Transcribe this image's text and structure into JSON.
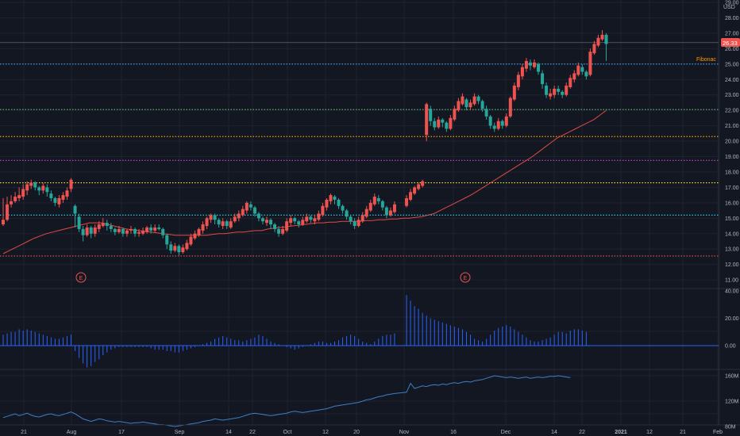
{
  "colors": {
    "background": "#131722",
    "grid": "#1f2330",
    "axis_text": "#b2b5be",
    "up": "#26a69a",
    "down": "#ef5350",
    "ma": "#e04a44",
    "histogram": "#2962ff",
    "line": "#3d7fc4"
  },
  "price_axis": {
    "unit": "USD",
    "ticks": [
      "29.00",
      "28.00",
      "27.00",
      "26.00",
      "25.00",
      "24.00",
      "23.00",
      "22.00",
      "21.00",
      "20.00",
      "19.00",
      "18.00",
      "17.00",
      "16.00",
      "15.00",
      "14.00",
      "13.00",
      "12.00",
      "11.00"
    ],
    "last_price": "26.33"
  },
  "indicator_axis": {
    "ticks": [
      "40.00",
      "20.00",
      "0.00"
    ]
  },
  "volume_axis": {
    "ticks": [
      "160M",
      "120M",
      "80M"
    ]
  },
  "time_axis": {
    "labels": [
      "21",
      "Aug",
      "17",
      "Sep",
      "14",
      "22",
      "Oct",
      "12",
      "20",
      "Nov",
      "16",
      "Dec",
      "14",
      "22",
      "2021",
      "12",
      "21",
      "Feb"
    ]
  },
  "fib_label": "Fibonac",
  "earnings_marker": "E",
  "chart_data": {
    "type": "candlestick",
    "y_range": [
      11,
      29
    ],
    "fib_levels": [
      {
        "price": 25.0,
        "color": "#42a5f5"
      },
      {
        "price": 22.05,
        "color": "#66bb6a"
      },
      {
        "price": 20.3,
        "color": "#ff9800"
      },
      {
        "price": 18.75,
        "color": "#ab47bc"
      },
      {
        "price": 17.3,
        "color": "#ffeb3b"
      },
      {
        "price": 15.2,
        "color": "#26c6da"
      },
      {
        "price": 12.55,
        "color": "#ef5350"
      }
    ],
    "resistance_price": 26.4,
    "candles": [
      [
        14.9,
        14.6,
        16.3,
        14.5
      ],
      [
        15.9,
        14.9,
        16.4,
        14.8
      ],
      [
        16.1,
        15.9,
        16.5,
        15.7
      ],
      [
        16.4,
        16.1,
        16.7,
        16.0
      ],
      [
        16.5,
        16.3,
        17.0,
        16.1
      ],
      [
        16.9,
        16.4,
        17.2,
        16.2
      ],
      [
        17.2,
        16.8,
        17.4,
        16.5
      ],
      [
        17.3,
        17.1,
        17.5,
        16.9
      ],
      [
        17.0,
        17.3,
        17.4,
        16.8
      ],
      [
        16.8,
        17.0,
        17.1,
        16.5
      ],
      [
        17.1,
        16.8,
        17.3,
        16.6
      ],
      [
        16.7,
        17.0,
        17.2,
        16.4
      ],
      [
        16.3,
        16.6,
        16.8,
        16.1
      ],
      [
        16.0,
        16.3,
        16.4,
        15.8
      ],
      [
        16.3,
        15.9,
        16.5,
        15.7
      ],
      [
        16.5,
        16.2,
        16.7,
        16.0
      ],
      [
        16.8,
        16.4,
        17.0,
        16.2
      ],
      [
        17.5,
        16.9,
        17.6,
        16.7
      ],
      [
        15.3,
        15.8,
        15.9,
        14.4
      ],
      [
        14.3,
        15.1,
        15.3,
        14.1
      ],
      [
        13.9,
        14.3,
        14.5,
        13.5
      ],
      [
        14.4,
        13.9,
        14.6,
        13.8
      ],
      [
        14.0,
        14.4,
        14.5,
        13.7
      ],
      [
        14.4,
        14.0,
        14.6,
        13.8
      ],
      [
        14.6,
        14.3,
        14.8,
        14.1
      ],
      [
        14.7,
        14.5,
        15.0,
        14.4
      ],
      [
        14.5,
        14.7,
        14.9,
        14.2
      ],
      [
        14.3,
        14.5,
        14.7,
        14.1
      ],
      [
        14.1,
        14.3,
        14.4,
        13.9
      ],
      [
        14.3,
        14.1,
        14.5,
        14.0
      ],
      [
        14.0,
        14.3,
        14.4,
        13.8
      ],
      [
        14.2,
        14.0,
        14.3,
        13.8
      ],
      [
        14.3,
        14.2,
        14.5,
        14.0
      ],
      [
        14.0,
        14.3,
        14.4,
        13.8
      ],
      [
        14.1,
        14.0,
        14.3,
        13.8
      ],
      [
        14.2,
        14.0,
        14.4,
        13.9
      ],
      [
        14.4,
        14.1,
        14.5,
        14.0
      ],
      [
        14.2,
        14.4,
        14.6,
        14.0
      ],
      [
        14.4,
        14.2,
        14.6,
        14.1
      ],
      [
        14.3,
        14.4,
        14.6,
        14.2
      ],
      [
        13.9,
        14.3,
        14.4,
        13.7
      ],
      [
        13.3,
        13.9,
        14.0,
        13.0
      ],
      [
        12.9,
        13.3,
        13.5,
        12.7
      ],
      [
        13.2,
        12.9,
        13.4,
        12.8
      ],
      [
        12.8,
        13.2,
        13.3,
        12.6
      ],
      [
        13.1,
        12.8,
        13.3,
        12.7
      ],
      [
        13.4,
        13.0,
        13.6,
        12.9
      ],
      [
        13.8,
        13.3,
        14.0,
        13.2
      ],
      [
        14.0,
        13.7,
        14.2,
        13.6
      ],
      [
        14.3,
        13.9,
        14.4,
        13.8
      ],
      [
        14.6,
        14.2,
        14.8,
        14.0
      ],
      [
        15.0,
        14.5,
        15.1,
        14.3
      ],
      [
        15.2,
        14.9,
        15.3,
        14.7
      ],
      [
        14.9,
        15.2,
        15.3,
        14.6
      ],
      [
        14.6,
        14.9,
        15.0,
        14.4
      ],
      [
        14.8,
        14.5,
        15.0,
        14.3
      ],
      [
        14.5,
        14.8,
        14.9,
        14.3
      ],
      [
        14.8,
        14.4,
        15.0,
        14.3
      ],
      [
        15.1,
        14.8,
        15.3,
        14.7
      ],
      [
        15.3,
        15.0,
        15.5,
        14.8
      ],
      [
        15.6,
        15.2,
        15.8,
        15.1
      ],
      [
        16.0,
        15.5,
        16.1,
        15.3
      ],
      [
        15.7,
        15.9,
        16.1,
        15.5
      ],
      [
        15.3,
        15.7,
        15.8,
        15.1
      ],
      [
        15.0,
        15.3,
        15.4,
        14.8
      ],
      [
        14.8,
        15.0,
        15.1,
        14.6
      ],
      [
        14.9,
        14.7,
        15.1,
        14.5
      ],
      [
        14.6,
        14.9,
        15.0,
        14.3
      ],
      [
        14.3,
        14.6,
        14.7,
        14.1
      ],
      [
        14.0,
        14.3,
        14.5,
        13.8
      ],
      [
        14.3,
        14.0,
        14.5,
        13.9
      ],
      [
        14.8,
        14.2,
        15.0,
        14.1
      ],
      [
        15.0,
        14.7,
        15.2,
        14.5
      ],
      [
        14.8,
        15.0,
        15.1,
        14.6
      ],
      [
        14.6,
        14.8,
        14.9,
        14.4
      ],
      [
        14.9,
        14.6,
        15.1,
        14.5
      ],
      [
        15.1,
        14.8,
        15.3,
        14.7
      ],
      [
        14.9,
        15.1,
        15.2,
        14.7
      ],
      [
        15.0,
        14.8,
        15.2,
        14.6
      ],
      [
        15.3,
        14.9,
        15.5,
        14.8
      ],
      [
        15.8,
        15.2,
        16.0,
        15.1
      ],
      [
        16.2,
        15.7,
        16.3,
        15.5
      ],
      [
        16.5,
        16.1,
        16.6,
        15.9
      ],
      [
        16.2,
        16.4,
        16.5,
        15.9
      ],
      [
        15.8,
        16.2,
        16.3,
        15.6
      ],
      [
        15.5,
        15.8,
        15.9,
        15.3
      ],
      [
        15.1,
        15.5,
        15.6,
        14.9
      ],
      [
        14.8,
        15.1,
        15.2,
        14.6
      ],
      [
        14.5,
        14.8,
        15.0,
        14.3
      ],
      [
        14.9,
        14.5,
        15.1,
        14.4
      ],
      [
        15.2,
        14.8,
        15.4,
        14.7
      ],
      [
        15.6,
        15.1,
        15.8,
        15.0
      ],
      [
        16.0,
        15.5,
        16.2,
        15.4
      ],
      [
        16.4,
        15.9,
        16.6,
        15.8
      ],
      [
        16.1,
        16.3,
        16.5,
        15.9
      ],
      [
        15.7,
        16.1,
        16.2,
        15.5
      ],
      [
        15.2,
        15.7,
        15.8,
        15.0
      ],
      [
        15.5,
        15.2,
        15.7,
        15.1
      ],
      [
        15.9,
        15.4,
        16.1,
        15.3
      ],
      [
        16.3,
        15.8,
        16.5,
        15.7
      ],
      [
        16.7,
        16.2,
        16.9,
        16.1
      ],
      [
        17.0,
        16.6,
        17.1,
        16.5
      ],
      [
        17.2,
        16.9,
        17.3,
        16.8
      ],
      [
        17.4,
        17.1,
        17.5,
        17.0
      ],
      [
        22.4,
        20.4,
        22.5,
        20.0
      ],
      [
        21.3,
        22.1,
        22.3,
        21.0
      ],
      [
        20.9,
        21.3,
        21.5,
        20.7
      ],
      [
        21.4,
        20.9,
        21.6,
        20.8
      ],
      [
        21.2,
        21.4,
        21.5,
        20.9
      ],
      [
        20.8,
        21.2,
        21.3,
        20.6
      ],
      [
        21.5,
        20.8,
        21.7,
        20.7
      ],
      [
        22.1,
        21.4,
        22.3,
        21.3
      ],
      [
        22.6,
        22.0,
        22.8,
        21.9
      ],
      [
        22.9,
        22.4,
        23.1,
        22.3
      ],
      [
        22.2,
        22.7,
        22.8,
        22.0
      ],
      [
        22.5,
        22.2,
        22.7,
        22.0
      ],
      [
        22.9,
        22.4,
        23.1,
        22.3
      ],
      [
        22.6,
        22.9,
        23.0,
        22.4
      ],
      [
        22.1,
        22.6,
        22.7,
        21.9
      ],
      [
        21.6,
        22.1,
        22.3,
        21.4
      ],
      [
        21.0,
        21.6,
        21.7,
        20.8
      ],
      [
        20.8,
        21.0,
        21.2,
        20.6
      ],
      [
        21.3,
        20.8,
        21.5,
        20.7
      ],
      [
        21.0,
        21.3,
        21.4,
        20.8
      ],
      [
        21.6,
        21.0,
        21.8,
        20.9
      ],
      [
        22.8,
        21.6,
        22.9,
        21.5
      ],
      [
        23.6,
        22.7,
        23.8,
        22.6
      ],
      [
        24.3,
        23.5,
        24.5,
        23.3
      ],
      [
        24.8,
        24.2,
        25.0,
        24.0
      ],
      [
        25.2,
        24.7,
        25.4,
        24.5
      ],
      [
        24.9,
        25.1,
        25.3,
        24.6
      ],
      [
        25.1,
        24.8,
        25.3,
        24.7
      ],
      [
        24.5,
        25.0,
        25.1,
        24.3
      ],
      [
        23.7,
        24.4,
        24.6,
        23.4
      ],
      [
        23.0,
        23.6,
        23.8,
        22.8
      ],
      [
        23.1,
        22.9,
        23.4,
        22.7
      ],
      [
        23.4,
        23.0,
        23.6,
        22.8
      ],
      [
        23.2,
        23.4,
        23.6,
        23.0
      ],
      [
        23.0,
        23.2,
        23.3,
        22.8
      ],
      [
        23.6,
        23.0,
        23.8,
        22.9
      ],
      [
        24.1,
        23.5,
        24.3,
        23.4
      ],
      [
        24.4,
        24.0,
        24.6,
        23.8
      ],
      [
        24.9,
        24.3,
        25.1,
        24.2
      ],
      [
        24.5,
        24.8,
        25.0,
        24.3
      ],
      [
        24.2,
        24.5,
        24.6,
        24.0
      ],
      [
        25.8,
        24.3,
        26.0,
        24.2
      ],
      [
        26.3,
        25.7,
        26.5,
        25.6
      ],
      [
        26.7,
        26.2,
        26.9,
        26.1
      ],
      [
        26.9,
        26.6,
        27.2,
        26.5
      ],
      [
        26.3,
        26.9,
        27.0,
        25.2
      ]
    ],
    "gap_slots": [
      99,
      100
    ],
    "moving_average": [
      12.7,
      12.9,
      13.1,
      13.3,
      13.5,
      13.7,
      13.85,
      14.0,
      14.1,
      14.2,
      14.3,
      14.4,
      14.5,
      14.6,
      14.7,
      14.7,
      14.7,
      14.6,
      14.5,
      14.4,
      14.3,
      14.25,
      14.2,
      14.15,
      14.1,
      14.05,
      14.0,
      13.95,
      13.9,
      13.9,
      13.9,
      13.9,
      13.9,
      13.9,
      13.95,
      14.0,
      14.0,
      14.05,
      14.1,
      14.1,
      14.15,
      14.2,
      14.2,
      14.3,
      14.35,
      14.4,
      14.45,
      14.5,
      14.55,
      14.6,
      14.65,
      14.7,
      14.7,
      14.75,
      14.75,
      14.8,
      14.8,
      14.8,
      14.8,
      14.85,
      14.85,
      14.9,
      14.9,
      14.95,
      14.95,
      15.0,
      15.0,
      15.05,
      15.1,
      15.2,
      15.3,
      15.5,
      15.7,
      15.9,
      16.1,
      16.3,
      16.5,
      16.75,
      17.0,
      17.25,
      17.5,
      17.75,
      18.0,
      18.25,
      18.5,
      18.75,
      19.0,
      19.3,
      19.6,
      19.9,
      20.2,
      20.4,
      20.6,
      20.8,
      21.0,
      21.2,
      21.4,
      21.7,
      22.0
    ],
    "histogram": [
      8,
      9,
      10,
      10,
      12,
      11,
      12,
      11,
      10,
      9,
      8,
      7,
      6,
      5,
      5,
      6,
      7,
      8,
      -4,
      -9,
      -13,
      -16,
      -15,
      -12,
      -10,
      -7,
      -5,
      -3,
      -2,
      -1,
      -1,
      -1,
      -1,
      -1,
      -1,
      -1,
      -1,
      -2,
      -3,
      -3,
      -3,
      -4,
      -4,
      -5,
      -5,
      -4,
      -3,
      -2,
      -1,
      0,
      1,
      2,
      3,
      5,
      6,
      7,
      6,
      5,
      4,
      4,
      3,
      4,
      5,
      6,
      8,
      7,
      5,
      3,
      2,
      1,
      0,
      -1,
      -2,
      -3,
      -2,
      -1,
      0,
      1,
      2,
      3,
      3,
      2,
      2,
      3,
      4,
      6,
      7,
      8,
      7,
      5,
      3,
      2,
      1,
      3,
      5,
      7,
      8,
      8,
      9,
      37,
      33,
      29,
      27,
      24,
      22,
      20,
      19,
      18,
      17,
      16,
      15,
      14,
      13,
      12,
      10,
      8,
      5,
      4,
      3,
      5,
      8,
      11,
      13,
      14,
      15,
      14,
      12,
      10,
      8,
      6,
      4,
      3,
      3,
      4,
      5,
      6,
      8,
      10,
      10,
      9,
      11,
      12,
      12,
      11,
      10
    ],
    "volume_line": [
      94,
      96,
      98,
      100,
      97,
      99,
      101,
      98,
      96,
      95,
      97,
      99,
      100,
      98,
      97,
      99,
      101,
      103,
      100,
      96,
      92,
      90,
      88,
      90,
      92,
      91,
      89,
      88,
      87,
      88,
      87,
      86,
      85,
      86,
      86,
      87,
      86,
      85,
      84,
      83,
      83,
      82,
      81,
      80,
      81,
      82,
      83,
      84,
      85,
      86,
      88,
      89,
      90,
      92,
      91,
      90,
      91,
      92,
      93,
      94,
      96,
      98,
      100,
      101,
      100,
      99,
      98,
      97,
      98,
      99,
      100,
      101,
      103,
      104,
      103,
      102,
      103,
      104,
      105,
      106,
      107,
      108,
      110,
      112,
      113,
      114,
      115,
      116,
      117,
      118,
      120,
      122,
      123,
      125,
      127,
      128,
      130,
      131,
      132,
      134,
      148,
      140,
      142,
      144,
      143,
      145,
      146,
      145,
      147,
      146,
      148,
      149,
      148,
      150,
      151,
      150,
      152,
      153,
      154,
      156,
      158,
      160,
      159,
      158,
      157,
      158,
      157,
      156,
      157,
      158,
      156,
      157,
      158,
      157,
      158,
      159,
      159,
      160,
      159,
      158,
      157
    ]
  }
}
